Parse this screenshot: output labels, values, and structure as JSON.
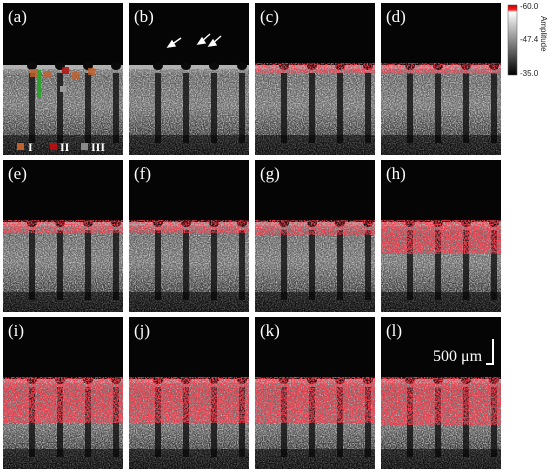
{
  "panels": [
    {
      "label": "(a)"
    },
    {
      "label": "(b)"
    },
    {
      "label": "(c)"
    },
    {
      "label": "(d)"
    },
    {
      "label": "(e)"
    },
    {
      "label": "(f)"
    },
    {
      "label": "(g)"
    },
    {
      "label": "(h)"
    },
    {
      "label": "(i)"
    },
    {
      "label": "(j)"
    },
    {
      "label": "(k)"
    },
    {
      "label": "(l)"
    }
  ],
  "legend": [
    {
      "label": "I"
    },
    {
      "label": "II"
    },
    {
      "label": "III"
    }
  ],
  "colorbar": {
    "title": "Amplitude",
    "top": "-60.0",
    "middle": "-47.4",
    "bottom": "-35.0"
  },
  "scale_bar": "500 μm"
}
